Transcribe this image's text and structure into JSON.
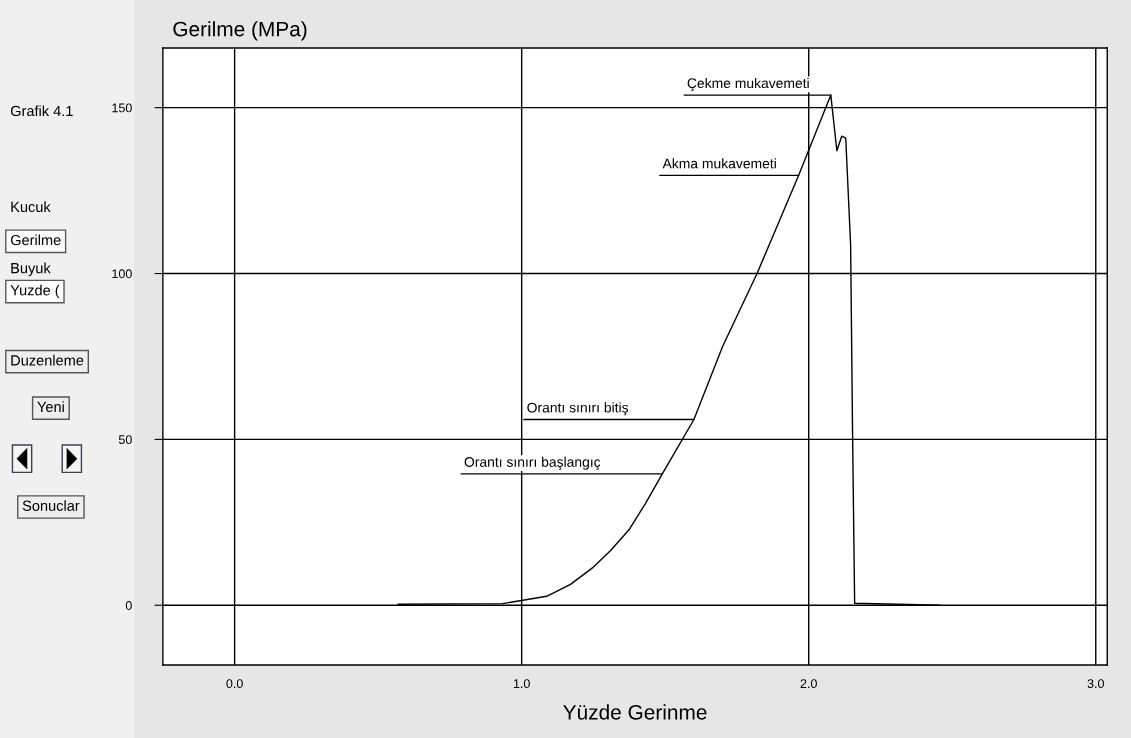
{
  "chart_data": {
    "type": "line",
    "xlabel": "Yüzde Gerinme",
    "ylabel": "Gerilme (MPa)",
    "x": [
      0.57,
      0.934,
      1.087,
      1.17,
      1.25,
      1.31,
      1.376,
      1.43,
      1.49,
      1.6,
      1.7,
      1.82,
      1.965,
      2.077,
      2.098,
      2.115,
      2.129,
      2.146,
      2.153,
      2.16,
      2.456
    ],
    "series": [
      {
        "color": "#000000",
        "values": [
          0.3,
          0.5,
          2.7,
          6.3,
          11.5,
          16.5,
          23,
          30.5,
          39.6,
          56,
          78,
          100,
          129.6,
          153.8,
          137,
          141.4,
          140.8,
          108.5,
          50,
          0.6,
          0
        ]
      }
    ],
    "xlim": [
      -0.25,
      3.04
    ],
    "ylim": [
      -18,
      168
    ],
    "xticks": [
      {
        "value": 0,
        "label": "0.0"
      },
      {
        "value": 1,
        "label": "1.0"
      },
      {
        "value": 2,
        "label": "2.0"
      },
      {
        "value": 3,
        "label": "3.0"
      }
    ],
    "yticks": [
      0,
      50,
      100,
      150
    ],
    "grid": true,
    "marker": "none",
    "line_style": "solid",
    "annotations": [
      {
        "text": "Çekme mukavemeti",
        "x": 2.077,
        "y": 153.8
      },
      {
        "text": "Akma mukavemeti",
        "x": 1.965,
        "y": 129.6
      },
      {
        "text": "Orantı sınırı bitiş",
        "x": 1.6,
        "y": 56
      },
      {
        "text": "Orantı sınırı başlangıç",
        "x": 1.49,
        "y": 39.6
      },
      "Grafik 4.1",
      "Kucuk",
      "Gerilme",
      "Buyuk",
      "Yuzde (",
      "Duzenleme",
      "Yeni",
      "Sonuclar"
    ]
  }
}
